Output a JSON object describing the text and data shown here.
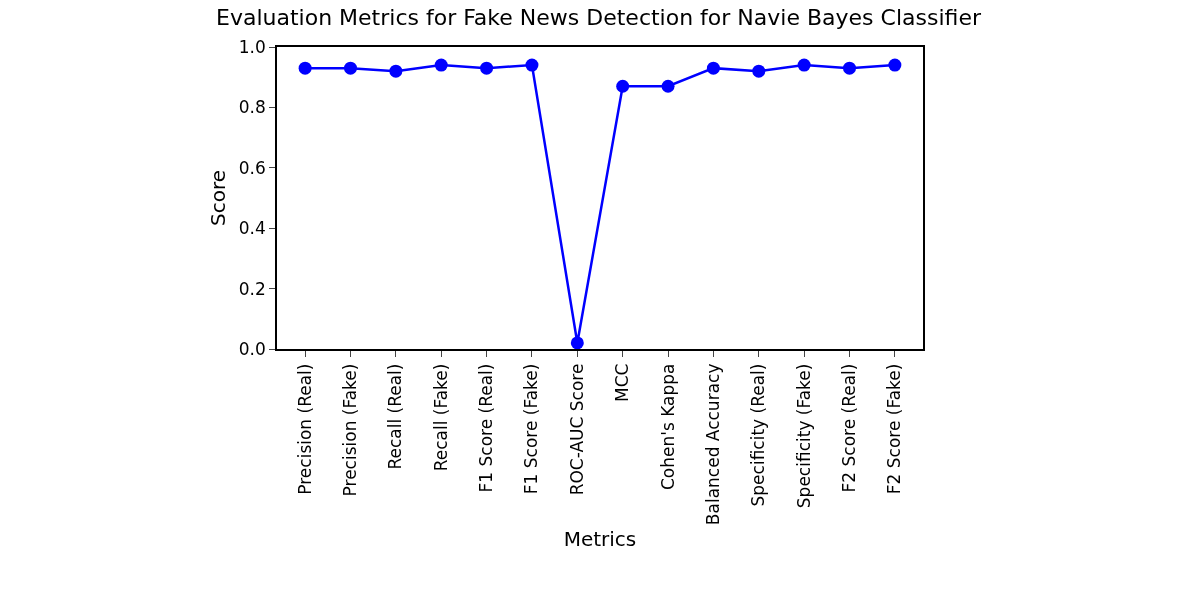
{
  "chart_data": {
    "type": "line",
    "title": "Evaluation Metrics for Fake News Detection for Navie Bayes Classifier",
    "xlabel": "Metrics",
    "ylabel": "Score",
    "categories": [
      "Precision (Real)",
      "Precision (Fake)",
      "Recall (Real)",
      "Recall (Fake)",
      "F1 Score (Real)",
      "F1 Score (Fake)",
      "ROC-AUC Score",
      "MCC",
      "Cohen's Kappa",
      "Balanced Accuracy",
      "Specificity (Real)",
      "Specificity (Fake)",
      "F2 Score (Real)",
      "F2 Score (Fake)"
    ],
    "series": [
      {
        "color": "#0000ff",
        "values": [
          0.93,
          0.93,
          0.92,
          0.94,
          0.93,
          0.94,
          0.02,
          0.87,
          0.87,
          0.93,
          0.92,
          0.94,
          0.93,
          0.94
        ]
      }
    ],
    "ylim": [
      0,
      1
    ],
    "yticks": [
      {
        "value": 0,
        "label": "0.0"
      },
      {
        "value": 0.2,
        "label": "0.2"
      },
      {
        "value": 0.4,
        "label": "0.4"
      },
      {
        "value": 0.6,
        "label": "0.6"
      },
      {
        "value": 0.8,
        "label": "0.8"
      },
      {
        "value": 1,
        "label": "1.0"
      }
    ],
    "marker": "circle",
    "line_style": "solid"
  }
}
